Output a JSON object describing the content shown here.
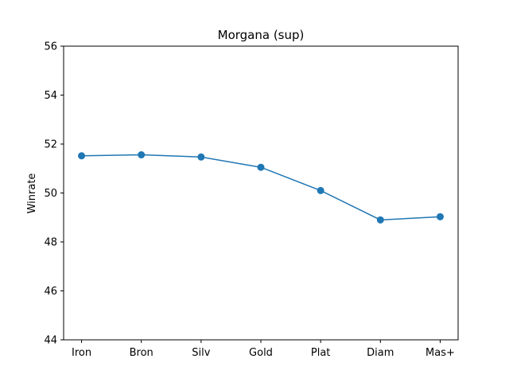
{
  "chart_data": {
    "type": "line",
    "title": "Morgana (sup)",
    "xlabel": "",
    "ylabel": "Winrate",
    "categories": [
      "Iron",
      "Bron",
      "Silv",
      "Gold",
      "Plat",
      "Diam",
      "Mas+"
    ],
    "series": [
      {
        "values": [
          51.52,
          51.56,
          51.47,
          51.05,
          50.1,
          48.9,
          49.03
        ],
        "color": "#1f77b4"
      }
    ],
    "ylim": [
      44,
      56
    ],
    "yticks": [
      44,
      46,
      48,
      50,
      52,
      54,
      56
    ],
    "grid": false,
    "legend": "none"
  }
}
